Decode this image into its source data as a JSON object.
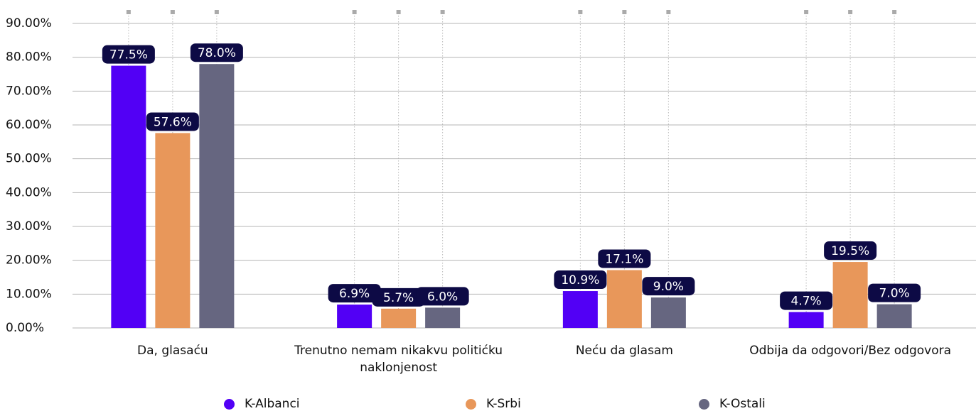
{
  "chart_data": {
    "type": "bar",
    "categories": [
      "Da, glasaću",
      "Trenutno nemam nikakvu politićku naklonjenost",
      "Neću da glasam",
      "Odbija da odgovori/Bez odgovora"
    ],
    "series": [
      {
        "name": "K-Albanci",
        "color": "#5200f5",
        "values": [
          77.5,
          6.9,
          10.9,
          4.7
        ],
        "value_labels": [
          "77.5%",
          "6.9%",
          "10.9%",
          "4.7%"
        ]
      },
      {
        "name": "K-Srbi",
        "color": "#e8975a",
        "values": [
          57.6,
          5.7,
          17.1,
          19.5
        ],
        "value_labels": [
          "57.6%",
          "5.7%",
          "17.1%",
          "19.5%"
        ]
      },
      {
        "name": "K-Ostali",
        "color": "#666680",
        "values": [
          78.0,
          6.0,
          9.0,
          7.0
        ],
        "value_labels": [
          "78.0%",
          "6.0%",
          "9.0%",
          "7.0%"
        ]
      }
    ],
    "ylim": [
      0,
      90
    ],
    "yticks": [
      {
        "value": 0,
        "label": "0.00%"
      },
      {
        "value": 10,
        "label": "10.00%"
      },
      {
        "value": 20,
        "label": "20.00%"
      },
      {
        "value": 30,
        "label": "30.00%"
      },
      {
        "value": 40,
        "label": "40.00%"
      },
      {
        "value": 50,
        "label": "50.00%"
      },
      {
        "value": 60,
        "label": "60.00%"
      },
      {
        "value": 70,
        "label": "70.00%"
      },
      {
        "value": 80,
        "label": "80.00%"
      },
      {
        "value": 90,
        "label": "90.00%"
      }
    ],
    "grid": true
  }
}
